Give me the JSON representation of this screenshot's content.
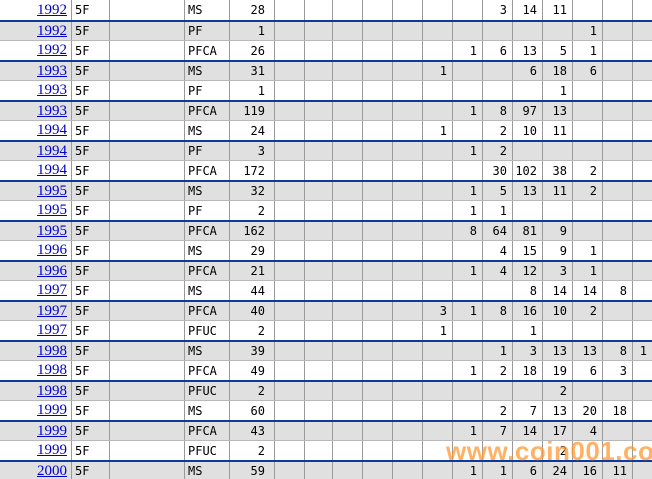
{
  "watermark": {
    "text": "www.coin001.com",
    "color": "#ff9933"
  },
  "colors": {
    "separator_blue": "#0c3a9e",
    "grid_gray": "#9a9a9a",
    "thin_line_gray": "#b9b9b9",
    "alt_row_bg": "#e0e0e0",
    "link_blue": "#0000cc",
    "watermark_orange": "#ff9933"
  },
  "table": {
    "grade_column_count": 13,
    "rows": [
      {
        "year": "1992",
        "denomination": "5F",
        "variety": "",
        "type": "MS",
        "total": "28",
        "grades": [
          "",
          "",
          "",
          "",
          "",
          "",
          "",
          "3",
          "14",
          "11",
          "",
          "",
          ""
        ]
      },
      {
        "year": "1992",
        "denomination": "5F",
        "variety": "",
        "type": "PF",
        "total": "1",
        "grades": [
          "",
          "",
          "",
          "",
          "",
          "",
          "",
          "",
          "",
          "",
          "1",
          "",
          ""
        ]
      },
      {
        "year": "1992",
        "denomination": "5F",
        "variety": "",
        "type": "PFCA",
        "total": "26",
        "grades": [
          "",
          "",
          "",
          "",
          "",
          "",
          "1",
          "6",
          "13",
          "5",
          "1",
          "",
          ""
        ]
      },
      {
        "year": "1993",
        "denomination": "5F",
        "variety": "",
        "type": "MS",
        "total": "31",
        "grades": [
          "",
          "",
          "",
          "",
          "",
          "1",
          "",
          "",
          "6",
          "18",
          "6",
          "",
          ""
        ]
      },
      {
        "year": "1993",
        "denomination": "5F",
        "variety": "",
        "type": "PF",
        "total": "1",
        "grades": [
          "",
          "",
          "",
          "",
          "",
          "",
          "",
          "",
          "",
          "1",
          "",
          "",
          ""
        ]
      },
      {
        "year": "1993",
        "denomination": "5F",
        "variety": "",
        "type": "PFCA",
        "total": "119",
        "grades": [
          "",
          "",
          "",
          "",
          "",
          "",
          "1",
          "8",
          "97",
          "13",
          "",
          "",
          ""
        ]
      },
      {
        "year": "1994",
        "denomination": "5F",
        "variety": "",
        "type": "MS",
        "total": "24",
        "grades": [
          "",
          "",
          "",
          "",
          "",
          "1",
          "",
          "2",
          "10",
          "11",
          "",
          "",
          ""
        ]
      },
      {
        "year": "1994",
        "denomination": "5F",
        "variety": "",
        "type": "PF",
        "total": "3",
        "grades": [
          "",
          "",
          "",
          "",
          "",
          "",
          "1",
          "2",
          "",
          "",
          "",
          "",
          ""
        ]
      },
      {
        "year": "1994",
        "denomination": "5F",
        "variety": "",
        "type": "PFCA",
        "total": "172",
        "grades": [
          "",
          "",
          "",
          "",
          "",
          "",
          "",
          "30",
          "102",
          "38",
          "2",
          "",
          ""
        ]
      },
      {
        "year": "1995",
        "denomination": "5F",
        "variety": "",
        "type": "MS",
        "total": "32",
        "grades": [
          "",
          "",
          "",
          "",
          "",
          "",
          "1",
          "5",
          "13",
          "11",
          "2",
          "",
          ""
        ]
      },
      {
        "year": "1995",
        "denomination": "5F",
        "variety": "",
        "type": "PF",
        "total": "2",
        "grades": [
          "",
          "",
          "",
          "",
          "",
          "",
          "1",
          "1",
          "",
          "",
          "",
          "",
          ""
        ]
      },
      {
        "year": "1995",
        "denomination": "5F",
        "variety": "",
        "type": "PFCA",
        "total": "162",
        "grades": [
          "",
          "",
          "",
          "",
          "",
          "",
          "8",
          "64",
          "81",
          "9",
          "",
          "",
          ""
        ]
      },
      {
        "year": "1996",
        "denomination": "5F",
        "variety": "",
        "type": "MS",
        "total": "29",
        "grades": [
          "",
          "",
          "",
          "",
          "",
          "",
          "",
          "4",
          "15",
          "9",
          "1",
          "",
          ""
        ]
      },
      {
        "year": "1996",
        "denomination": "5F",
        "variety": "",
        "type": "PFCA",
        "total": "21",
        "grades": [
          "",
          "",
          "",
          "",
          "",
          "",
          "1",
          "4",
          "12",
          "3",
          "1",
          "",
          ""
        ]
      },
      {
        "year": "1997",
        "denomination": "5F",
        "variety": "",
        "type": "MS",
        "total": "44",
        "grades": [
          "",
          "",
          "",
          "",
          "",
          "",
          "",
          "",
          "8",
          "14",
          "14",
          "8",
          ""
        ]
      },
      {
        "year": "1997",
        "denomination": "5F",
        "variety": "",
        "type": "PFCA",
        "total": "40",
        "grades": [
          "",
          "",
          "",
          "",
          "",
          "3",
          "1",
          "8",
          "16",
          "10",
          "2",
          "",
          ""
        ]
      },
      {
        "year": "1997",
        "denomination": "5F",
        "variety": "",
        "type": "PFUC",
        "total": "2",
        "grades": [
          "",
          "",
          "",
          "",
          "",
          "1",
          "",
          "",
          "1",
          "",
          "",
          "",
          ""
        ]
      },
      {
        "year": "1998",
        "denomination": "5F",
        "variety": "",
        "type": "MS",
        "total": "39",
        "grades": [
          "",
          "",
          "",
          "",
          "",
          "",
          "",
          "1",
          "3",
          "13",
          "13",
          "8",
          "1"
        ]
      },
      {
        "year": "1998",
        "denomination": "5F",
        "variety": "",
        "type": "PFCA",
        "total": "49",
        "grades": [
          "",
          "",
          "",
          "",
          "",
          "",
          "1",
          "2",
          "18",
          "19",
          "6",
          "3",
          ""
        ]
      },
      {
        "year": "1998",
        "denomination": "5F",
        "variety": "",
        "type": "PFUC",
        "total": "2",
        "grades": [
          "",
          "",
          "",
          "",
          "",
          "",
          "",
          "",
          "",
          "2",
          "",
          "",
          ""
        ]
      },
      {
        "year": "1999",
        "denomination": "5F",
        "variety": "",
        "type": "MS",
        "total": "60",
        "grades": [
          "",
          "",
          "",
          "",
          "",
          "",
          "",
          "2",
          "7",
          "13",
          "20",
          "18",
          ""
        ]
      },
      {
        "year": "1999",
        "denomination": "5F",
        "variety": "",
        "type": "PFCA",
        "total": "43",
        "grades": [
          "",
          "",
          "",
          "",
          "",
          "",
          "1",
          "7",
          "14",
          "17",
          "4",
          "",
          ""
        ]
      },
      {
        "year": "1999",
        "denomination": "5F",
        "variety": "",
        "type": "PFUC",
        "total": "2",
        "grades": [
          "",
          "",
          "",
          "",
          "",
          "",
          "",
          "",
          "",
          "2",
          "",
          "",
          ""
        ]
      },
      {
        "year": "2000",
        "denomination": "5F",
        "variety": "",
        "type": "MS",
        "total": "59",
        "grades": [
          "",
          "",
          "",
          "",
          "",
          "",
          "1",
          "1",
          "6",
          "24",
          "16",
          "11",
          ""
        ]
      }
    ]
  }
}
